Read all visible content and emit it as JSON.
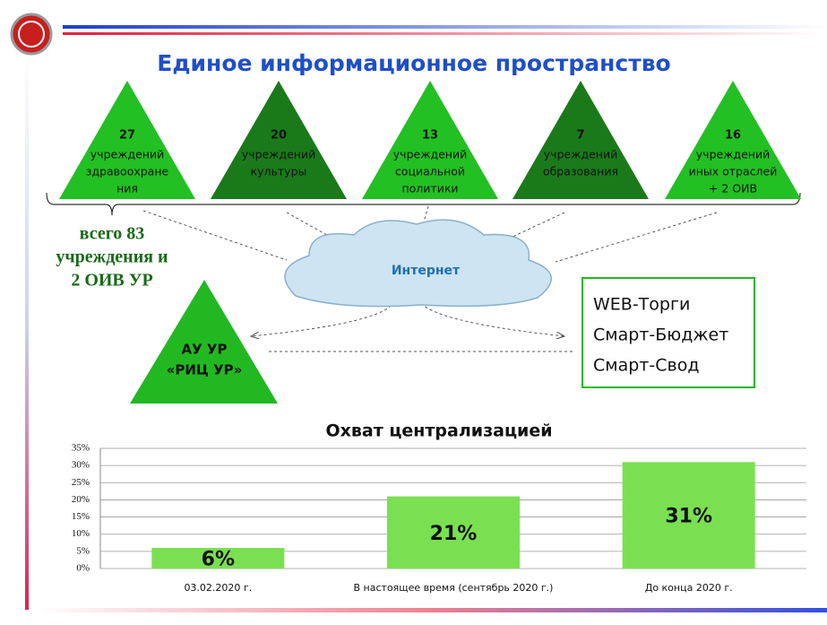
{
  "title": "Единое информационное пространство",
  "triangles": [
    {
      "number": "27",
      "lines": [
        "учреждений",
        "здравоохране",
        "ния"
      ]
    },
    {
      "number": "20",
      "lines": [
        "учреждений",
        "культуры"
      ]
    },
    {
      "number": "13",
      "lines": [
        "учреждений",
        "социальной",
        "политики"
      ]
    },
    {
      "number": "7",
      "lines": [
        "учреждений",
        "образования"
      ]
    },
    {
      "number": "16",
      "lines": [
        "учреждений",
        "иных отраслей",
        "+ 2 ОИВ"
      ]
    }
  ],
  "summary": [
    "всего 83",
    "учреждения и",
    "2 ОИВ УР"
  ],
  "cloud": "Интернет",
  "center": [
    "АУ УР",
    "«РИЦ УР»"
  ],
  "systems": [
    "WEB-Торги",
    "Смарт-Бюджет",
    "Смарт-Свод"
  ],
  "chart_data": {
    "type": "bar",
    "title": "Охват централизацией",
    "categories": [
      "03.02.2020 г.",
      "В настоящее время (сентябрь 2020 г.)",
      "До конца 2020 г."
    ],
    "values": [
      6,
      21,
      31
    ],
    "value_labels": [
      "6%",
      "21%",
      "31%"
    ],
    "color": "#7ae052",
    "ylim": [
      0,
      35
    ],
    "yticks": [
      {
        "value": 0,
        "label": "0%"
      },
      {
        "value": 5,
        "label": "5%"
      },
      {
        "value": 10,
        "label": "10%"
      },
      {
        "value": 15,
        "label": "15%"
      },
      {
        "value": 20,
        "label": "20%"
      },
      {
        "value": 25,
        "label": "25%"
      },
      {
        "value": 30,
        "label": "30%"
      },
      {
        "value": 35,
        "label": "35%"
      }
    ],
    "grid": true
  }
}
